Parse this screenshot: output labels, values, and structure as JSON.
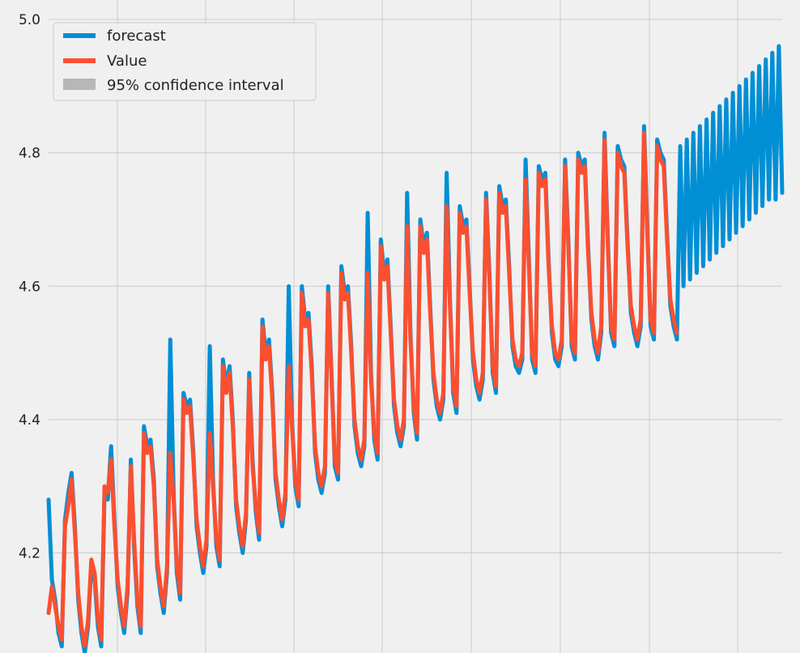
{
  "chart_data": {
    "type": "line",
    "title": "",
    "xlabel": "",
    "ylabel": "",
    "ylim": [
      4.05,
      5.0
    ],
    "yticks": [
      4.2,
      4.4,
      4.6,
      4.8,
      5.0
    ],
    "ytick_labels": [
      "4.2",
      "4.4",
      "4.6",
      "4.8",
      "5.0"
    ],
    "x_tick_labels_shown": false,
    "grid": true,
    "legend_position": "top-left",
    "legend": [
      {
        "label": "forecast",
        "kind": "line",
        "color": "#008fd5"
      },
      {
        "label": "Value",
        "kind": "line",
        "color": "#fc4f30"
      },
      {
        "label": "95% confidence interval",
        "kind": "patch",
        "color": "#b7b7b7"
      }
    ],
    "seasonal_period": 12,
    "series": [
      {
        "name": "Value",
        "color": "#fc4f30",
        "values": [
          4.11,
          4.15,
          4.12,
          4.09,
          4.07,
          4.24,
          4.27,
          4.31,
          4.23,
          4.14,
          4.09,
          4.06,
          4.1,
          4.19,
          4.17,
          4.1,
          4.07,
          4.3,
          4.29,
          4.34,
          4.24,
          4.16,
          4.12,
          4.09,
          4.15,
          4.33,
          4.22,
          4.13,
          4.09,
          4.38,
          4.35,
          4.36,
          4.3,
          4.19,
          4.15,
          4.12,
          4.18,
          4.35,
          4.28,
          4.18,
          4.14,
          4.43,
          4.41,
          4.42,
          4.34,
          4.25,
          4.21,
          4.18,
          4.22,
          4.38,
          4.3,
          4.22,
          4.19,
          4.48,
          4.44,
          4.47,
          4.39,
          4.28,
          4.24,
          4.21,
          4.26,
          4.46,
          4.33,
          4.27,
          4.23,
          4.54,
          4.49,
          4.51,
          4.43,
          4.32,
          4.28,
          4.25,
          4.29,
          4.48,
          4.39,
          4.31,
          4.28,
          4.59,
          4.54,
          4.55,
          4.47,
          4.36,
          4.32,
          4.3,
          4.33,
          4.59,
          4.46,
          4.34,
          4.32,
          4.62,
          4.58,
          4.59,
          4.5,
          4.4,
          4.36,
          4.34,
          4.37,
          4.62,
          4.46,
          4.38,
          4.35,
          4.66,
          4.61,
          4.63,
          4.53,
          4.43,
          4.39,
          4.37,
          4.4,
          4.69,
          4.52,
          4.42,
          4.38,
          4.69,
          4.65,
          4.67,
          4.56,
          4.47,
          4.43,
          4.41,
          4.44,
          4.72,
          4.57,
          4.45,
          4.42,
          4.71,
          4.68,
          4.69,
          4.59,
          4.5,
          4.46,
          4.44,
          4.47,
          4.73,
          4.61,
          4.48,
          4.45,
          4.74,
          4.71,
          4.72,
          4.62,
          4.52,
          4.49,
          4.48,
          4.5,
          4.76,
          4.63,
          4.5,
          4.48,
          4.77,
          4.75,
          4.76,
          4.63,
          4.54,
          4.5,
          4.49,
          4.52,
          4.78,
          4.66,
          4.52,
          4.5,
          4.79,
          4.77,
          4.78,
          4.65,
          4.56,
          4.52,
          4.5,
          4.54,
          4.82,
          4.66,
          4.54,
          4.52,
          4.8,
          4.78,
          4.77,
          4.66,
          4.57,
          4.54,
          4.52,
          4.55,
          4.83,
          4.68,
          4.55,
          4.53,
          4.81,
          4.79,
          4.78,
          4.67,
          4.58,
          4.55,
          4.53
        ]
      },
      {
        "name": "forecast",
        "color": "#008fd5",
        "values": [
          4.28,
          4.16,
          4.13,
          4.08,
          4.06,
          4.25,
          4.29,
          4.32,
          4.24,
          4.13,
          4.08,
          4.05,
          4.09,
          4.18,
          4.16,
          4.09,
          4.06,
          4.29,
          4.28,
          4.36,
          4.25,
          4.15,
          4.11,
          4.08,
          4.14,
          4.34,
          4.21,
          4.12,
          4.08,
          4.39,
          4.36,
          4.37,
          4.31,
          4.18,
          4.14,
          4.11,
          4.17,
          4.52,
          4.29,
          4.17,
          4.13,
          4.44,
          4.42,
          4.43,
          4.35,
          4.24,
          4.2,
          4.17,
          4.21,
          4.51,
          4.31,
          4.21,
          4.18,
          4.49,
          4.45,
          4.48,
          4.4,
          4.27,
          4.23,
          4.2,
          4.25,
          4.47,
          4.34,
          4.26,
          4.22,
          4.55,
          4.5,
          4.52,
          4.44,
          4.31,
          4.27,
          4.24,
          4.28,
          4.6,
          4.4,
          4.3,
          4.27,
          4.6,
          4.55,
          4.56,
          4.48,
          4.35,
          4.31,
          4.29,
          4.32,
          4.6,
          4.47,
          4.33,
          4.31,
          4.63,
          4.59,
          4.6,
          4.51,
          4.39,
          4.35,
          4.33,
          4.36,
          4.71,
          4.47,
          4.37,
          4.34,
          4.67,
          4.62,
          4.64,
          4.54,
          4.42,
          4.38,
          4.36,
          4.39,
          4.74,
          4.53,
          4.41,
          4.37,
          4.7,
          4.66,
          4.68,
          4.57,
          4.46,
          4.42,
          4.4,
          4.43,
          4.77,
          4.58,
          4.44,
          4.41,
          4.72,
          4.69,
          4.7,
          4.6,
          4.49,
          4.45,
          4.43,
          4.46,
          4.74,
          4.62,
          4.47,
          4.44,
          4.75,
          4.72,
          4.73,
          4.63,
          4.51,
          4.48,
          4.47,
          4.49,
          4.79,
          4.64,
          4.49,
          4.47,
          4.78,
          4.76,
          4.77,
          4.64,
          4.53,
          4.49,
          4.48,
          4.51,
          4.79,
          4.67,
          4.51,
          4.49,
          4.8,
          4.78,
          4.79,
          4.66,
          4.55,
          4.51,
          4.49,
          4.53,
          4.83,
          4.67,
          4.53,
          4.51,
          4.81,
          4.79,
          4.78,
          4.67,
          4.56,
          4.53,
          4.51,
          4.54,
          4.84,
          4.69,
          4.54,
          4.52,
          4.82,
          4.8,
          4.79,
          4.68,
          4.57,
          4.54,
          4.52,
          4.81,
          4.6,
          4.82,
          4.61,
          4.83,
          4.62,
          4.84,
          4.63,
          4.85,
          4.64,
          4.86,
          4.65,
          4.87,
          4.66,
          4.88,
          4.67,
          4.89,
          4.68,
          4.9,
          4.69,
          4.91,
          4.7,
          4.92,
          4.71,
          4.93,
          4.72,
          4.94,
          4.73,
          4.95,
          4.73,
          4.96,
          4.74
        ]
      }
    ],
    "observed_count": 192
  }
}
